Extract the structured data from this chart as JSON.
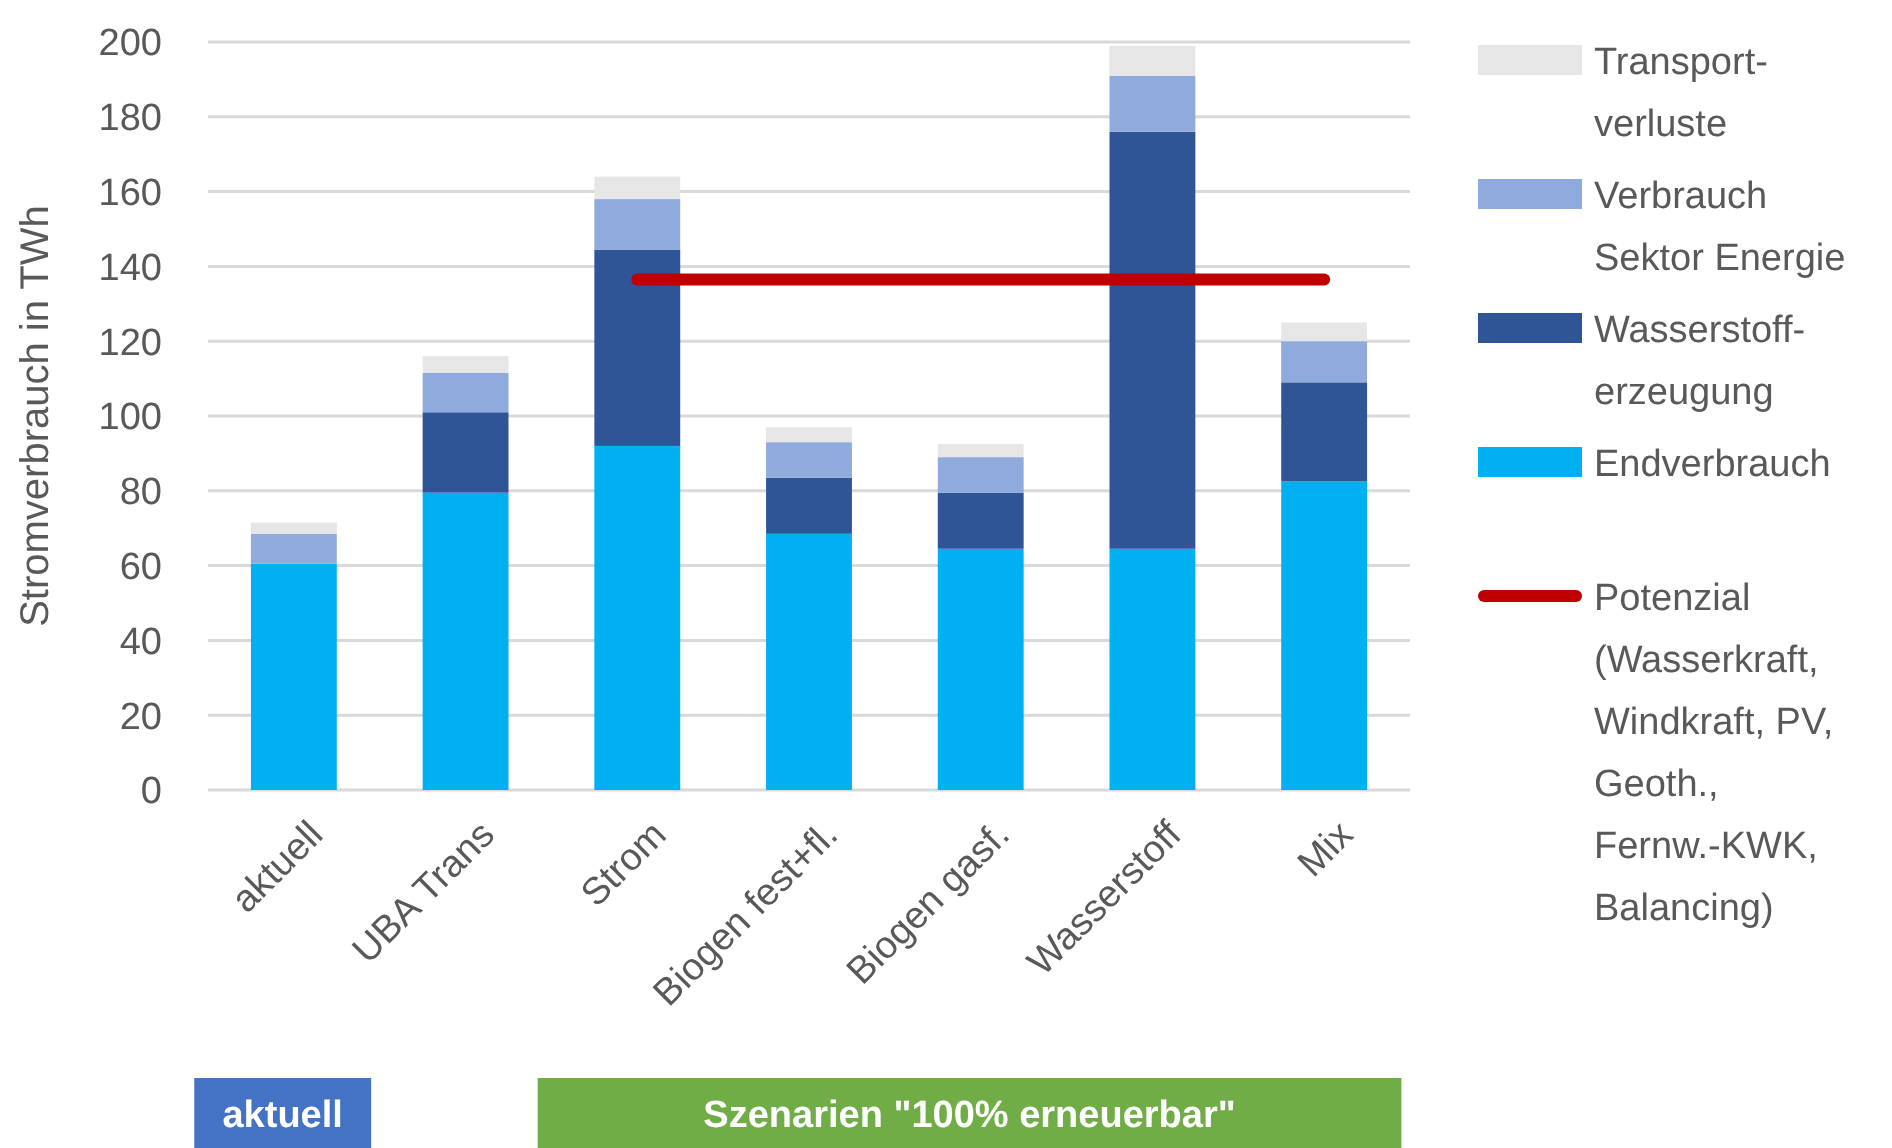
{
  "chart_data": {
    "type": "bar",
    "stacked": true,
    "ylabel": "Stromverbrauch in TWh",
    "categories": [
      "aktuell",
      "UBA Trans",
      "Strom",
      "Biogen fest+fl.",
      "Biogen gasf.",
      "Wasserstoff",
      "Mix"
    ],
    "series": [
      {
        "name": "Endverbrauch",
        "color": "#00b0f0",
        "values": [
          60.5,
          79.5,
          92,
          68.5,
          64.5,
          64.5,
          82.5
        ]
      },
      {
        "name": "Wasserstoff-erzeugung",
        "color": "#2f5597",
        "values": [
          null,
          21.5,
          52.5,
          15,
          15,
          111.5,
          26.5
        ]
      },
      {
        "name": "Verbrauch Sektor Energie",
        "color": "#8faadc",
        "values": [
          8,
          10.5,
          13.5,
          9.5,
          9.5,
          15,
          11
        ]
      },
      {
        "name": "Transport-verluste",
        "color": "#e7e6e6",
        "values": [
          3,
          4.5,
          6,
          4,
          3.5,
          8,
          5
        ]
      },
      {
        "name": "Potenzial (Wasserkraft, Windkraft, PV, Geoth., Fernw.-KWK, Balancing)",
        "type": "line",
        "color": "#c00000",
        "values": [
          null,
          null,
          136.5,
          136.5,
          136.5,
          136.5,
          136.5
        ]
      }
    ],
    "ylim": [
      0,
      200
    ],
    "yticks": [
      0,
      20,
      40,
      60,
      80,
      100,
      120,
      140,
      160,
      180,
      200
    ],
    "grid": "y",
    "legend": "right",
    "annotations": [
      "aktuell",
      "Szenarien \"100% erneuerbar\""
    ]
  }
}
